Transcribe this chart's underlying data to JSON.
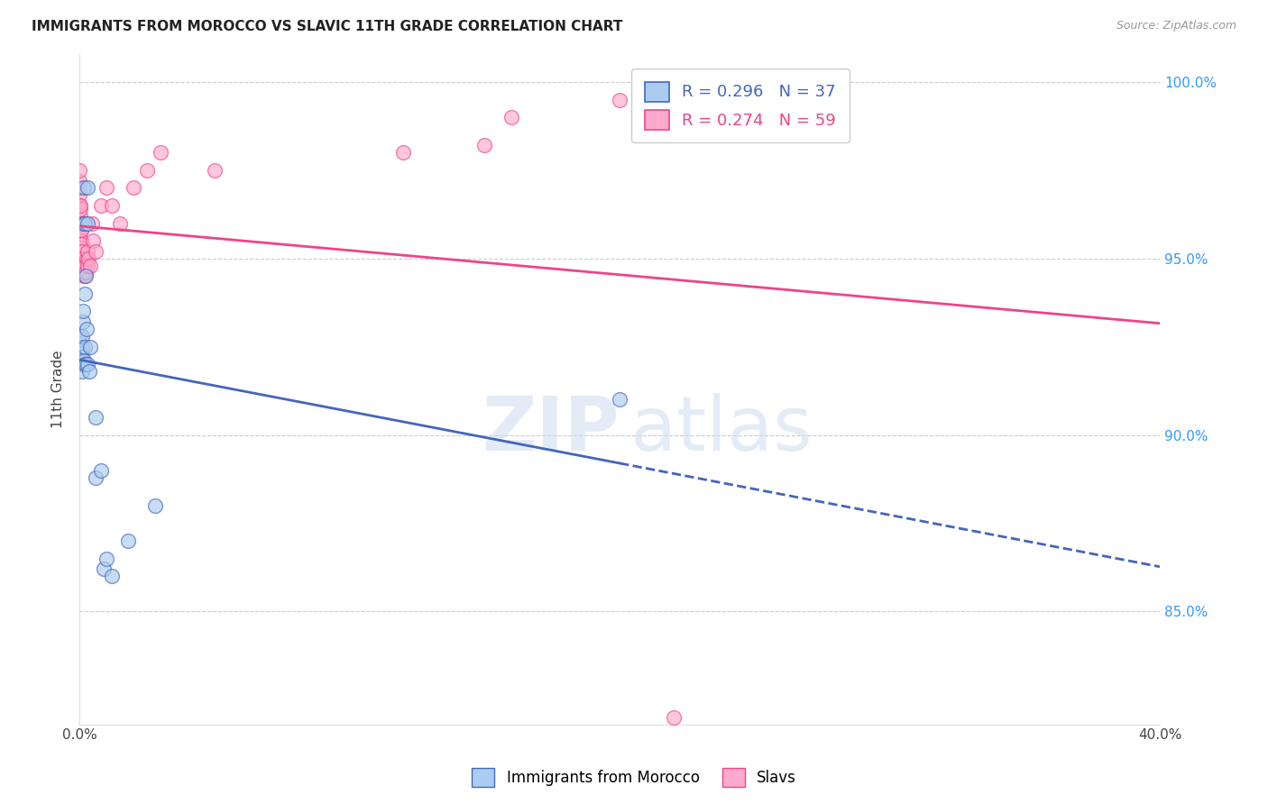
{
  "title": "IMMIGRANTS FROM MOROCCO VS SLAVIC 11TH GRADE CORRELATION CHART",
  "source": "Source: ZipAtlas.com",
  "ylabel": "11th Grade",
  "legend_blue_R": "0.296",
  "legend_blue_N": "37",
  "legend_pink_R": "0.274",
  "legend_pink_N": "59",
  "blue_scatter_color": "#aaccee",
  "pink_scatter_color": "#ffaacc",
  "trendline_blue_color": "#4466bb",
  "trendline_pink_color": "#ee4488",
  "blue_scatter": [
    [
      0.0,
      0.922
    ],
    [
      0.0,
      0.924
    ],
    [
      0.0,
      0.926
    ],
    [
      0.0,
      0.928
    ],
    [
      0.0005,
      0.92
    ],
    [
      0.0005,
      0.923
    ],
    [
      0.0008,
      0.921
    ],
    [
      0.0008,
      0.925
    ],
    [
      0.001,
      0.918
    ],
    [
      0.001,
      0.922
    ],
    [
      0.001,
      0.928
    ],
    [
      0.0012,
      0.932
    ],
    [
      0.0012,
      0.935
    ],
    [
      0.0015,
      0.921
    ],
    [
      0.0015,
      0.96
    ],
    [
      0.0015,
      0.97
    ],
    [
      0.0018,
      0.925
    ],
    [
      0.0018,
      0.96
    ],
    [
      0.002,
      0.92
    ],
    [
      0.002,
      0.94
    ],
    [
      0.0022,
      0.92
    ],
    [
      0.0022,
      0.945
    ],
    [
      0.0025,
      0.93
    ],
    [
      0.0028,
      0.92
    ],
    [
      0.003,
      0.96
    ],
    [
      0.003,
      0.97
    ],
    [
      0.0035,
      0.918
    ],
    [
      0.0038,
      0.925
    ],
    [
      0.006,
      0.888
    ],
    [
      0.006,
      0.905
    ],
    [
      0.008,
      0.89
    ],
    [
      0.009,
      0.862
    ],
    [
      0.01,
      0.865
    ],
    [
      0.012,
      0.86
    ],
    [
      0.018,
      0.87
    ],
    [
      0.028,
      0.88
    ],
    [
      0.2,
      0.91
    ]
  ],
  "pink_scatter": [
    [
      0.0,
      0.965
    ],
    [
      0.0,
      0.965
    ],
    [
      0.0,
      0.965
    ],
    [
      0.0,
      0.965
    ],
    [
      0.0,
      0.965
    ],
    [
      0.0,
      0.965
    ],
    [
      0.0,
      0.968
    ],
    [
      0.0,
      0.97
    ],
    [
      0.0,
      0.972
    ],
    [
      0.0,
      0.975
    ],
    [
      0.0,
      0.96
    ],
    [
      0.0002,
      0.96
    ],
    [
      0.0002,
      0.962
    ],
    [
      0.0002,
      0.964
    ],
    [
      0.0003,
      0.958
    ],
    [
      0.0003,
      0.96
    ],
    [
      0.0003,
      0.965
    ],
    [
      0.0004,
      0.948
    ],
    [
      0.0004,
      0.95
    ],
    [
      0.0004,
      0.955
    ],
    [
      0.0005,
      0.958
    ],
    [
      0.0005,
      0.96
    ],
    [
      0.0006,
      0.955
    ],
    [
      0.0006,
      0.958
    ],
    [
      0.0007,
      0.95
    ],
    [
      0.0007,
      0.953
    ],
    [
      0.0008,
      0.952
    ],
    [
      0.0008,
      0.954
    ],
    [
      0.001,
      0.95
    ],
    [
      0.001,
      0.952
    ],
    [
      0.0012,
      0.948
    ],
    [
      0.0012,
      0.95
    ],
    [
      0.0015,
      0.945
    ],
    [
      0.0015,
      0.948
    ],
    [
      0.0018,
      0.946
    ],
    [
      0.0018,
      0.948
    ],
    [
      0.002,
      0.945
    ],
    [
      0.0022,
      0.946
    ],
    [
      0.0025,
      0.95
    ],
    [
      0.0028,
      0.948
    ],
    [
      0.003,
      0.952
    ],
    [
      0.0032,
      0.95
    ],
    [
      0.004,
      0.948
    ],
    [
      0.0045,
      0.96
    ],
    [
      0.005,
      0.955
    ],
    [
      0.006,
      0.952
    ],
    [
      0.008,
      0.965
    ],
    [
      0.01,
      0.97
    ],
    [
      0.012,
      0.965
    ],
    [
      0.015,
      0.96
    ],
    [
      0.02,
      0.97
    ],
    [
      0.025,
      0.975
    ],
    [
      0.03,
      0.98
    ],
    [
      0.05,
      0.975
    ],
    [
      0.12,
      0.98
    ],
    [
      0.15,
      0.982
    ],
    [
      0.16,
      0.99
    ],
    [
      0.2,
      0.995
    ],
    [
      0.22,
      0.82
    ]
  ],
  "xlim": [
    0.0,
    0.4
  ],
  "ylim": [
    0.818,
    1.008
  ],
  "xticks": [
    0.0,
    0.1,
    0.2,
    0.3,
    0.4
  ],
  "xtick_labels": [
    "0.0%",
    "",
    "",
    "",
    "40.0%"
  ],
  "ytick_values": [
    1.0,
    0.95,
    0.9,
    0.85
  ],
  "ytick_labels": [
    "100.0%",
    "95.0%",
    "90.0%",
    "85.0%"
  ]
}
